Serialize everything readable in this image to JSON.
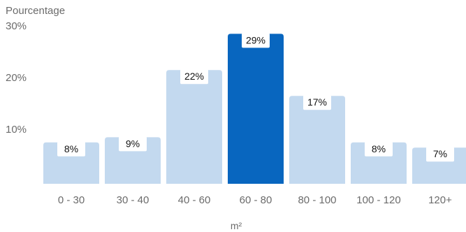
{
  "chart_data": {
    "type": "bar",
    "ylabel": "Pourcentage",
    "xlabel": "m²",
    "ylim": [
      0,
      30
    ],
    "yticks": [
      {
        "value": 10,
        "label": "10%"
      },
      {
        "value": 20,
        "label": "20%"
      },
      {
        "value": 30,
        "label": "30%"
      }
    ],
    "categories": [
      "0 - 30",
      "30 - 40",
      "40 - 60",
      "60 - 80",
      "80 - 100",
      "100 - 120",
      "120+"
    ],
    "values": [
      8,
      9,
      22,
      29,
      17,
      8,
      7
    ],
    "data_labels": [
      "8%",
      "9%",
      "22%",
      "29%",
      "17%",
      "8%",
      "7%"
    ],
    "highlight_index": 3,
    "colors": {
      "bar": "#c3d9ef",
      "highlight": "#0866bf",
      "label_bg": "#ffffff",
      "text": "#6b6b6b",
      "label_text": "#111111"
    },
    "grid": false
  }
}
